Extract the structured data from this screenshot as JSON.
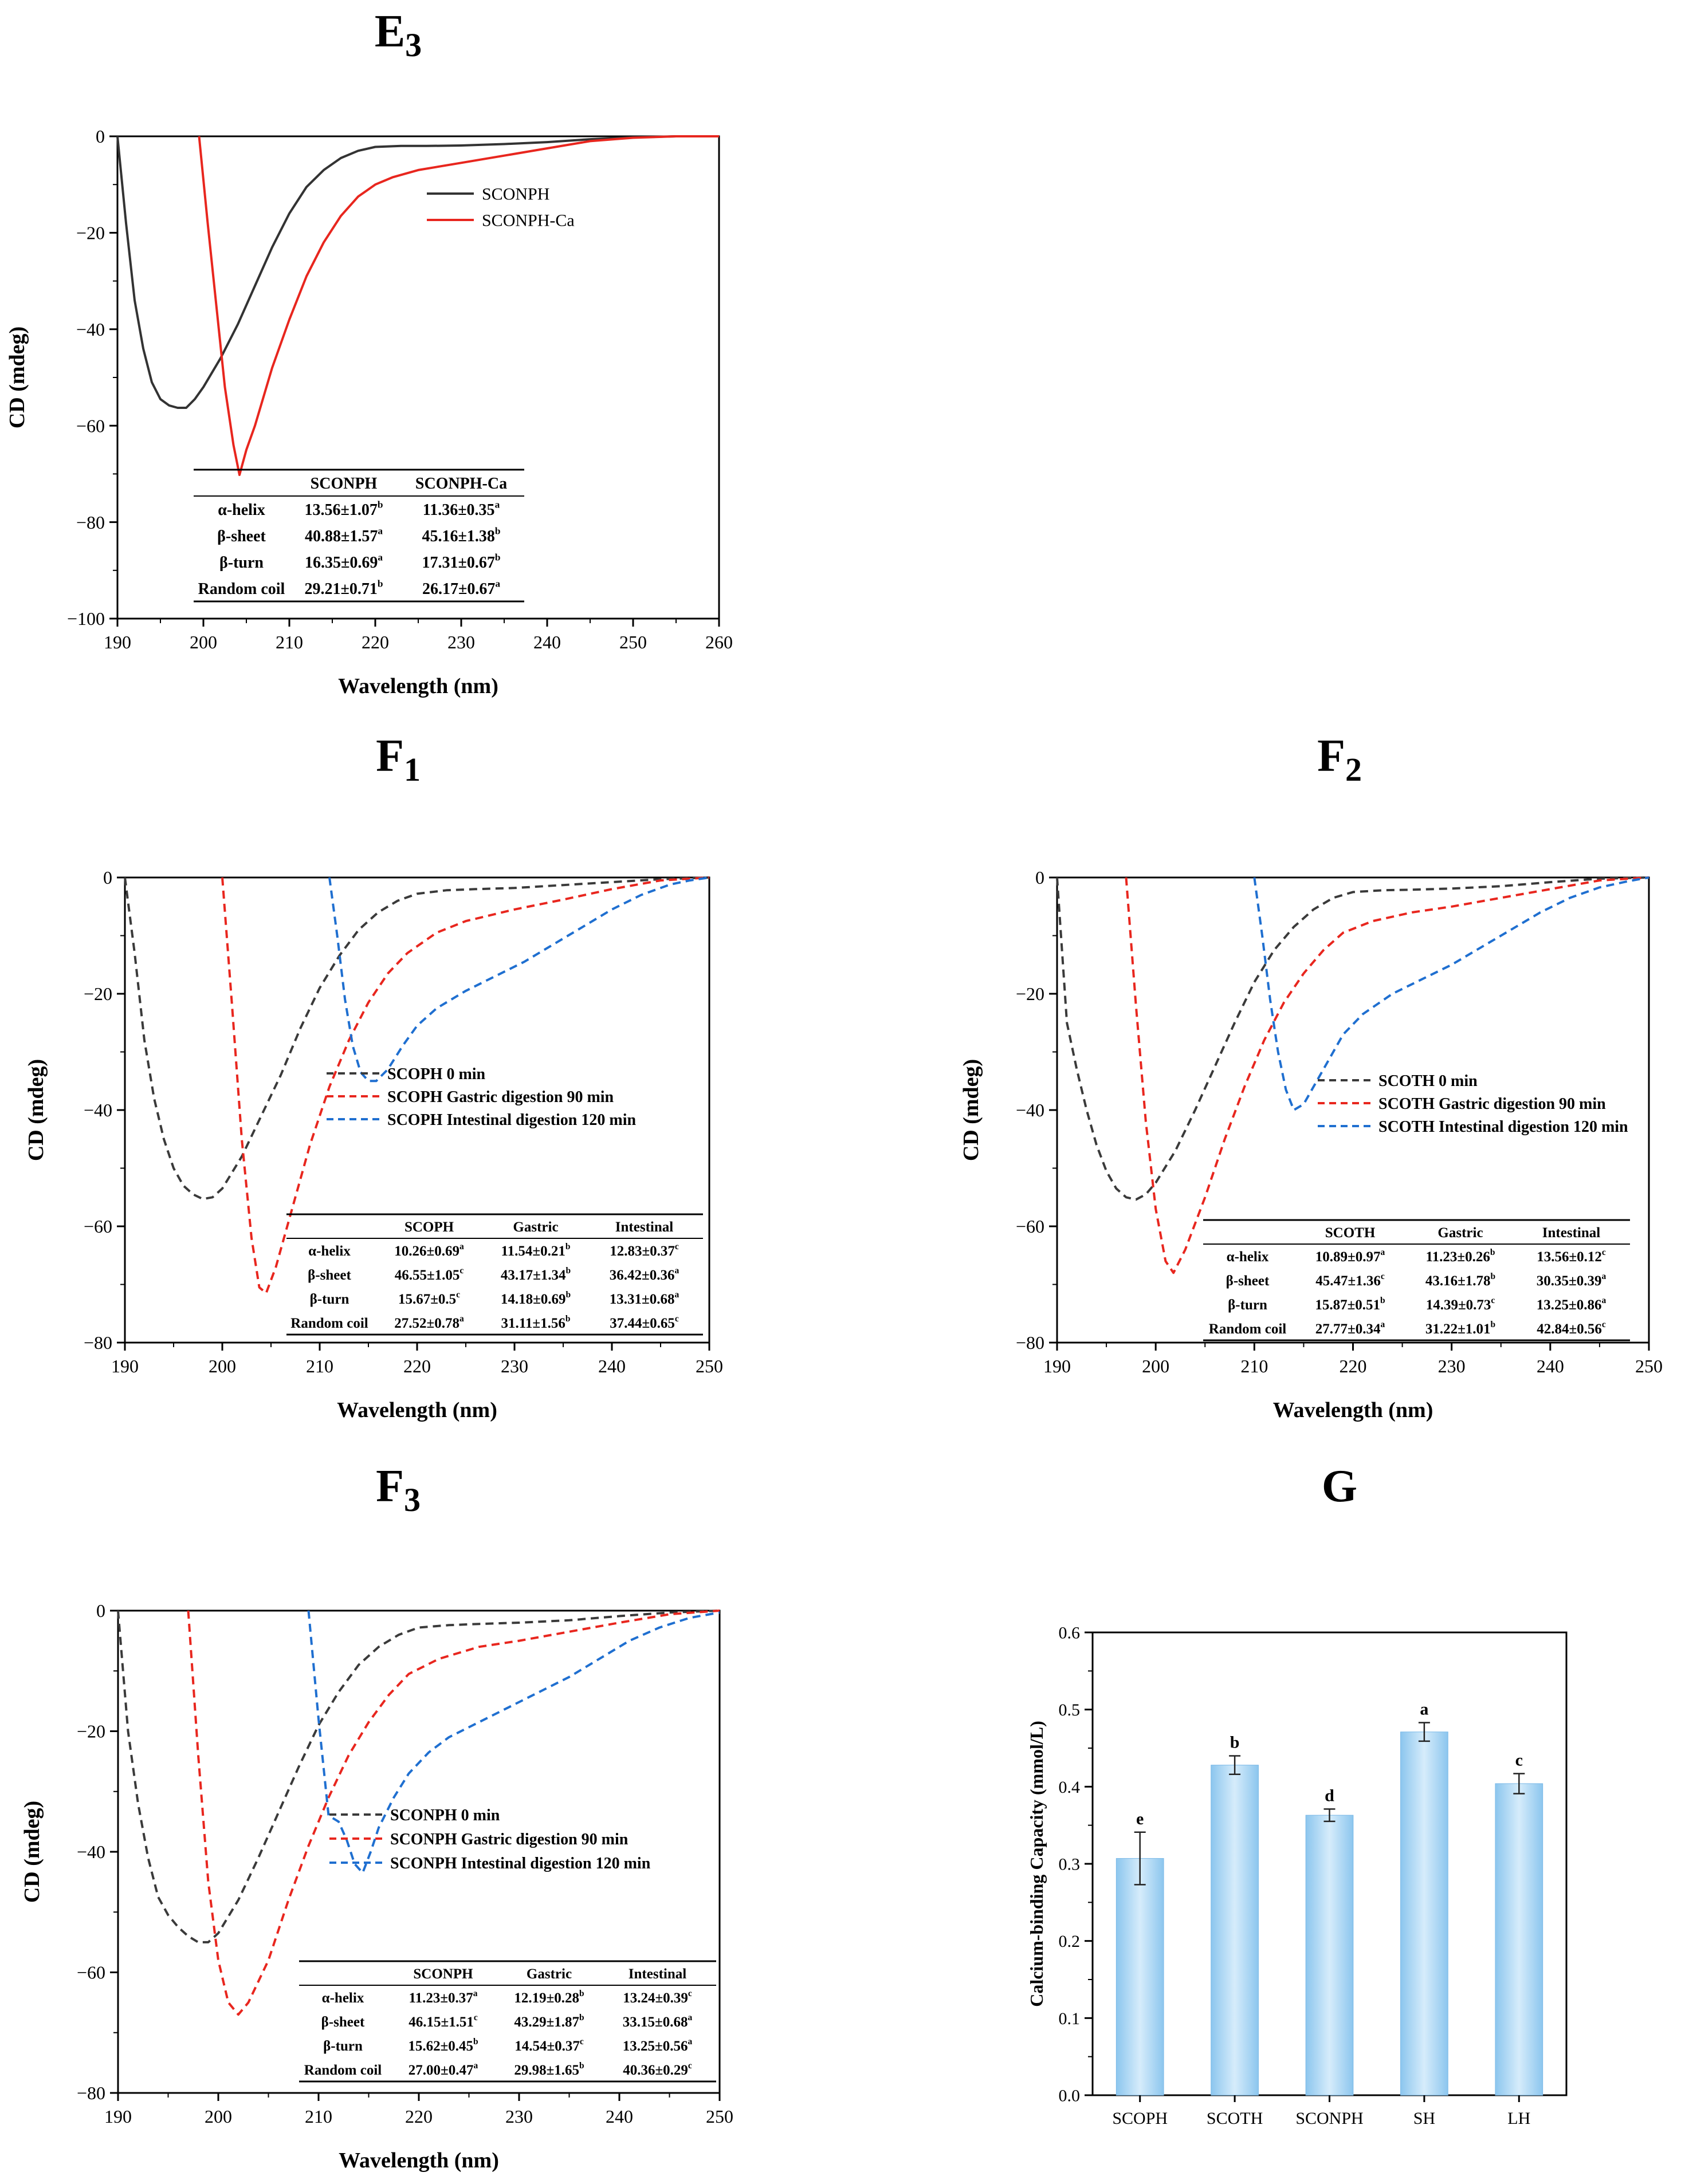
{
  "panels": [
    {
      "id": "E3",
      "label_main": "E",
      "label_sub": "3"
    },
    {
      "id": "F1",
      "label_main": "F",
      "label_sub": "1"
    },
    {
      "id": "F2",
      "label_main": "F",
      "label_sub": "2"
    },
    {
      "id": "F3",
      "label_main": "F",
      "label_sub": "3"
    },
    {
      "id": "G",
      "label_main": "G",
      "label_sub": ""
    }
  ],
  "chart_data": [
    {
      "id": "E3",
      "type": "line",
      "xlabel": "Wavelength (nm)",
      "ylabel": "CD (mdeg)",
      "xlim": [
        190,
        260
      ],
      "ylim": [
        -100,
        0
      ],
      "xticks": [
        190,
        200,
        210,
        220,
        230,
        240,
        250,
        260
      ],
      "yticks": [
        0,
        -20,
        -40,
        -60,
        -80,
        -100
      ],
      "legend_position": "top-right",
      "series": [
        {
          "name": "SCONPH",
          "color": "#333333",
          "dash": "solid",
          "x": [
            190,
            191,
            192,
            193,
            194,
            195,
            196,
            197,
            198,
            199,
            200,
            202,
            204,
            206,
            208,
            210,
            212,
            214,
            216,
            218,
            220,
            223,
            226,
            230,
            235,
            240,
            245,
            250,
            255,
            260
          ],
          "y": [
            0,
            -18,
            -34,
            -44,
            -51,
            -54.5,
            -55.8,
            -56.3,
            -56.3,
            -54.5,
            -52,
            -46,
            -39,
            -31,
            -23,
            -16,
            -10.5,
            -7,
            -4.5,
            -3,
            -2.2,
            -2,
            -2,
            -1.9,
            -1.6,
            -1.2,
            -0.6,
            -0.2,
            0,
            0.1
          ]
        },
        {
          "name": "SCONPH-Ca",
          "color": "#e8261e",
          "dash": "solid",
          "x": [
            199.5,
            200.5,
            201.5,
            202.5,
            203.5,
            204.2,
            205,
            206,
            208,
            210,
            212,
            214,
            216,
            218,
            220,
            222,
            225,
            230,
            235,
            240,
            245,
            250,
            255,
            260
          ],
          "y": [
            0,
            -18,
            -35,
            -52,
            -64,
            -70.2,
            -65,
            -60,
            -48,
            -38,
            -29,
            -22,
            -16.5,
            -12.5,
            -10,
            -8.5,
            -7,
            -5.5,
            -4,
            -2.5,
            -1,
            -0.3,
            0,
            0.1
          ]
        }
      ],
      "table": {
        "headers": [
          "",
          "SCONPH",
          "SCONPH-Ca"
        ],
        "rows": [
          [
            "α-helix",
            "13.56±1.07",
            "b",
            "11.36±0.35",
            "a"
          ],
          [
            "β-sheet",
            "40.88±1.57",
            "a",
            "45.16±1.38",
            "b"
          ],
          [
            "β-turn",
            "16.35±0.69",
            "a",
            "17.31±0.67",
            "b"
          ],
          [
            "Random coil",
            "29.21±0.71",
            "b",
            "26.17±0.67",
            "a"
          ]
        ]
      }
    },
    {
      "id": "F1",
      "type": "line",
      "xlabel": "Wavelength (nm)",
      "ylabel": "CD (mdeg)",
      "xlim": [
        190,
        250
      ],
      "ylim": [
        -80,
        0
      ],
      "xticks": [
        190,
        200,
        210,
        220,
        230,
        240,
        250
      ],
      "yticks": [
        0,
        -20,
        -40,
        -60,
        -80
      ],
      "legend_position": "center-right",
      "series": [
        {
          "name": "SCOPH 0 min",
          "color": "#3a3a3a",
          "dash": "dashed",
          "x": [
            190,
            191,
            192,
            193,
            194,
            195,
            196,
            197,
            198,
            199,
            200,
            202,
            204,
            206,
            208,
            210,
            212,
            214,
            216,
            218,
            220,
            223,
            226,
            230,
            235,
            240,
            245,
            250
          ],
          "y": [
            0,
            -13,
            -28,
            -38,
            -45,
            -50,
            -53,
            -54.5,
            -55.3,
            -55,
            -53.5,
            -48,
            -41,
            -34,
            -26,
            -19,
            -13.5,
            -9,
            -6,
            -4,
            -2.8,
            -2.2,
            -2,
            -1.8,
            -1.3,
            -0.8,
            -0.3,
            0
          ]
        },
        {
          "name": "SCOPH Gastric digestion 90 min",
          "color": "#e8261e",
          "dash": "dashed",
          "x": [
            200,
            201,
            202,
            203,
            203.8,
            204.5,
            205.5,
            207,
            209,
            211,
            213,
            215,
            217,
            219,
            222,
            225,
            230,
            235,
            240,
            245,
            250
          ],
          "y": [
            0,
            -22,
            -45,
            -62,
            -70.5,
            -71.5,
            -67,
            -58,
            -46,
            -36,
            -28,
            -21.5,
            -16.5,
            -13,
            -9.5,
            -7.5,
            -5.5,
            -3.8,
            -2,
            -0.5,
            0
          ]
        },
        {
          "name": "SCOPH Intestinal digestion 120 min",
          "color": "#1f6fd0",
          "dash": "dashed",
          "x": [
            211,
            211.8,
            212.6,
            213.4,
            214.2,
            215,
            215.8,
            217,
            218.5,
            220,
            222,
            225,
            228,
            231,
            234,
            237,
            240,
            243,
            246,
            248,
            250
          ],
          "y": [
            0,
            -10,
            -21,
            -29,
            -33.5,
            -35,
            -35,
            -33,
            -29,
            -25.5,
            -22.5,
            -19.5,
            -17,
            -14.5,
            -11.5,
            -8.5,
            -5.5,
            -3,
            -1.2,
            -0.5,
            0
          ]
        }
      ],
      "table": {
        "headers": [
          "",
          "SCOPH",
          "Gastric",
          "Intestinal"
        ],
        "rows": [
          [
            "α-helix",
            "10.26±0.69",
            "a",
            "11.54±0.21",
            "b",
            "12.83±0.37",
            "c"
          ],
          [
            "β-sheet",
            "46.55±1.05",
            "c",
            "43.17±1.34",
            "b",
            "36.42±0.36",
            "a"
          ],
          [
            "β-turn",
            "15.67±0.5",
            "c",
            "14.18±0.69",
            "b",
            "13.31±0.68",
            "a"
          ],
          [
            "Random coil",
            "27.52±0.78",
            "a",
            "31.11±1.56",
            "b",
            "37.44±0.65",
            "c"
          ]
        ]
      }
    },
    {
      "id": "F2",
      "type": "line",
      "xlabel": "Wavelength (nm)",
      "ylabel": "CD (mdeg)",
      "xlim": [
        190,
        250
      ],
      "ylim": [
        -80,
        0
      ],
      "xticks": [
        190,
        200,
        210,
        220,
        230,
        240,
        250
      ],
      "yticks": [
        0,
        -20,
        -40,
        -60,
        -80
      ],
      "legend_position": "center-right",
      "series": [
        {
          "name": "SCOTH 0 min",
          "color": "#3a3a3a",
          "dash": "dashed",
          "x": [
            190,
            191,
            192,
            193,
            194,
            195,
            196,
            197,
            198,
            199,
            200,
            202,
            204,
            206,
            208,
            210,
            212,
            214,
            216,
            218,
            220,
            223,
            226,
            230,
            235,
            240,
            245,
            250
          ],
          "y": [
            0,
            -25,
            -33,
            -40,
            -46,
            -50.5,
            -53.5,
            -55,
            -55.4,
            -54.5,
            -52.5,
            -47,
            -40,
            -32.5,
            -25,
            -18,
            -12.5,
            -8.5,
            -5.5,
            -3.5,
            -2.5,
            -2.2,
            -2.1,
            -1.9,
            -1.5,
            -0.8,
            -0.2,
            0
          ]
        },
        {
          "name": "SCOTH Gastric digestion 90 min",
          "color": "#e8261e",
          "dash": "dashed",
          "x": [
            197,
            198,
            199,
            200,
            201,
            201.8,
            203,
            205,
            207,
            209,
            211,
            213,
            215,
            217,
            219,
            222,
            226,
            230,
            235,
            240,
            245,
            250
          ],
          "y": [
            0,
            -22,
            -42,
            -57,
            -66,
            -68,
            -64,
            -55,
            -45,
            -36,
            -28,
            -21.5,
            -16.5,
            -12.5,
            -9.5,
            -7.5,
            -6,
            -5,
            -3.5,
            -2,
            -0.5,
            0
          ]
        },
        {
          "name": "SCOTH Intestinal digestion 120 min",
          "color": "#1f6fd0",
          "dash": "dashed",
          "x": [
            210,
            210.8,
            211.6,
            212.4,
            213.2,
            214,
            215,
            216,
            217.5,
            219,
            221,
            224,
            227,
            230,
            233,
            236,
            239,
            242,
            245,
            248,
            250
          ],
          "y": [
            0,
            -10,
            -21,
            -30,
            -36.5,
            -40,
            -39,
            -36,
            -31.5,
            -27,
            -23.5,
            -20,
            -17.5,
            -15,
            -12,
            -9,
            -6,
            -3.5,
            -1.7,
            -0.6,
            0
          ]
        }
      ],
      "table": {
        "headers": [
          "",
          "SCOTH",
          "Gastric",
          "Intestinal"
        ],
        "rows": [
          [
            "α-helix",
            "10.89±0.97",
            "a",
            "11.23±0.26",
            "b",
            "13.56±0.12",
            "c"
          ],
          [
            "β-sheet",
            "45.47±1.36",
            "c",
            "43.16±1.78",
            "b",
            "30.35±0.39",
            "a"
          ],
          [
            "β-turn",
            "15.87±0.51",
            "b",
            "14.39±0.73",
            "c",
            "13.25±0.86",
            "a"
          ],
          [
            "Random coil",
            "27.77±0.34",
            "a",
            "31.22±1.01",
            "b",
            "42.84±0.56",
            "c"
          ]
        ]
      }
    },
    {
      "id": "F3",
      "type": "line",
      "xlabel": "Wavelength (nm)",
      "ylabel": "CD (mdeg)",
      "xlim": [
        190,
        250
      ],
      "ylim": [
        -80,
        0
      ],
      "xticks": [
        190,
        200,
        210,
        220,
        230,
        240,
        250
      ],
      "yticks": [
        0,
        -20,
        -40,
        -60,
        -80
      ],
      "legend_position": "center-right",
      "series": [
        {
          "name": "SCONPH 0 min",
          "color": "#3a3a3a",
          "dash": "dashed",
          "x": [
            190,
            191,
            192,
            193,
            194,
            195,
            196,
            197,
            198,
            199,
            200,
            202,
            204,
            206,
            208,
            210,
            212,
            214,
            216,
            218,
            220,
            223,
            226,
            230,
            235,
            240,
            245,
            250
          ],
          "y": [
            0,
            -20,
            -32,
            -41,
            -47.5,
            -50.5,
            -52.5,
            -54,
            -55,
            -55,
            -53.5,
            -48,
            -41,
            -33.5,
            -26,
            -19,
            -13.5,
            -9,
            -6,
            -4,
            -2.8,
            -2.4,
            -2.2,
            -2,
            -1.6,
            -0.9,
            -0.3,
            0
          ]
        },
        {
          "name": "SCONPH Gastric digestion 90 min",
          "color": "#e8261e",
          "dash": "dashed",
          "x": [
            197,
            198,
            199,
            200,
            201,
            202,
            203,
            205,
            207,
            209,
            211,
            213,
            215,
            217,
            219,
            222,
            226,
            230,
            235,
            240,
            245,
            250
          ],
          "y": [
            0,
            -24,
            -45,
            -58,
            -65,
            -67,
            -65,
            -58,
            -48,
            -39,
            -31,
            -24,
            -18.5,
            -14,
            -10.5,
            -8,
            -6,
            -5,
            -3.5,
            -2,
            -0.6,
            0
          ]
        },
        {
          "name": "SCONPH Intestinal digestion 120 min",
          "color": "#1f6fd0",
          "dash": "dashed",
          "x": [
            209,
            210,
            211,
            212,
            212.8,
            213.6,
            214.4,
            215.2,
            216,
            217.5,
            219,
            221,
            223,
            226,
            229,
            232,
            235,
            238,
            241,
            244,
            247,
            250
          ],
          "y": [
            0,
            -18,
            -34,
            -35,
            -38,
            -42,
            -43.5,
            -40,
            -36,
            -31,
            -27,
            -23.5,
            -21,
            -18.5,
            -16,
            -13.5,
            -11,
            -8,
            -5,
            -2.8,
            -1.2,
            -0.3
          ]
        }
      ],
      "table": {
        "headers": [
          "",
          "SCONPH",
          "Gastric",
          "Intestinal"
        ],
        "rows": [
          [
            "α-helix",
            "11.23±0.37",
            "a",
            "12.19±0.28",
            "b",
            "13.24±0.39",
            "c"
          ],
          [
            "β-sheet",
            "46.15±1.51",
            "c",
            "43.29±1.87",
            "b",
            "33.15±0.68",
            "a"
          ],
          [
            "β-turn",
            "15.62±0.45",
            "b",
            "14.54±0.37",
            "c",
            "13.25±0.56",
            "a"
          ],
          [
            "Random coil",
            "27.00±0.47",
            "a",
            "29.98±1.65",
            "b",
            "40.36±0.29",
            "c"
          ]
        ]
      }
    },
    {
      "id": "G",
      "type": "bar",
      "xlabel": "",
      "ylabel": "Calcium-binding Capacity (mmol/L)",
      "ylim": [
        0,
        0.6
      ],
      "yticks": [
        0.0,
        0.1,
        0.2,
        0.3,
        0.4,
        0.5,
        0.6
      ],
      "ytick_labels": [
        "0.0",
        "0.1",
        "0.2",
        "0.3",
        "0.4",
        "0.5",
        "0.6"
      ],
      "categories": [
        "SCOPH",
        "SCOTH",
        "SCONPH",
        "SH",
        "LH"
      ],
      "values": [
        0.307,
        0.428,
        0.363,
        0.471,
        0.404
      ],
      "errors": [
        0.034,
        0.012,
        0.008,
        0.012,
        0.013
      ],
      "letters": [
        "e",
        "b",
        "d",
        "a",
        "c"
      ],
      "bar_color": "#a9d3f0"
    }
  ]
}
